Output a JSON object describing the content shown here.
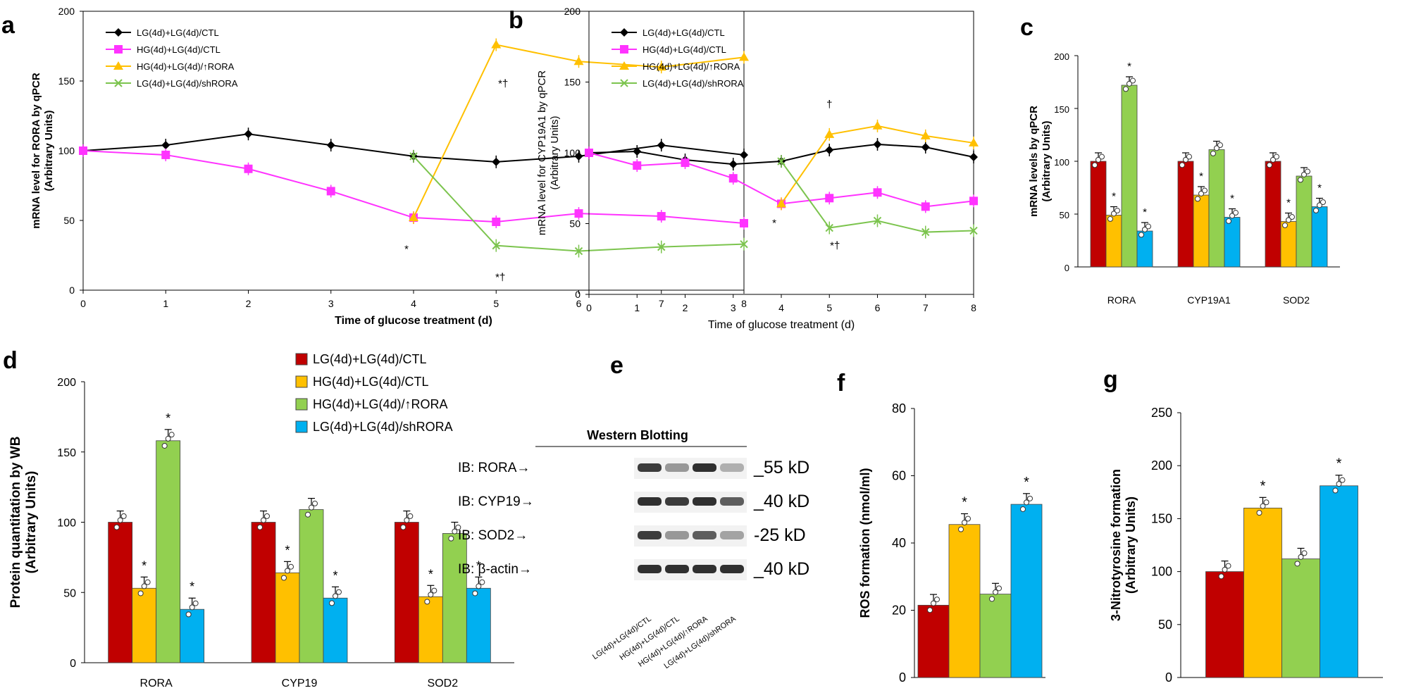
{
  "colors": {
    "black": "#000000",
    "magenta": "#FF33FF",
    "yellow": "#FFC000",
    "green": "#7CC44E",
    "red": "#C00000",
    "orange": "#FFC000",
    "lightgreen": "#92D050",
    "blue": "#00B0F0"
  },
  "chart_data": [
    {
      "panel": "a",
      "type": "line",
      "title": "",
      "xlabel": "Time of glucose treatment (d)",
      "ylabel": "mRNA level for RORA by qPCR",
      "ylabel2": "(Arbitrary Units)",
      "x": [
        0,
        1,
        2,
        3,
        4,
        5,
        6,
        7,
        8
      ],
      "xlim": [
        0,
        8
      ],
      "ylim": [
        0,
        200
      ],
      "yticks": [
        0,
        50,
        100,
        150,
        200
      ],
      "legend_position": "top-left",
      "series": [
        {
          "name": "LG(4d)+LG(4d)/CTL",
          "x": [
            0,
            1,
            2,
            3,
            4,
            5,
            6,
            7,
            8
          ],
          "values": [
            100,
            104,
            112,
            104,
            96,
            92,
            96,
            104,
            97
          ]
        },
        {
          "name": "HG(4d)+LG(4d)/CTL",
          "x": [
            0,
            1,
            2,
            3,
            4,
            5,
            6,
            7,
            8
          ],
          "values": [
            100,
            97,
            87,
            71,
            52,
            49,
            55,
            53,
            48
          ]
        },
        {
          "name": "HG(4d)+LG(4d)/↑RORA",
          "x": [
            4,
            5,
            6,
            7,
            8
          ],
          "values": [
            52,
            176,
            164,
            160,
            167
          ]
        },
        {
          "name": "LG(4d)+LG(4d)/shRORA",
          "x": [
            4,
            5,
            6,
            7,
            8
          ],
          "values": [
            96,
            32,
            28,
            31,
            33
          ]
        }
      ],
      "annotations": [
        "*†",
        "*",
        "*†"
      ]
    },
    {
      "panel": "b",
      "type": "line",
      "title": "",
      "xlabel": "Time of glucose treatment (d)",
      "ylabel": "mRNA level for CYP19A1 by qPCR",
      "ylabel2": "(Arbitrary Units)",
      "x": [
        0,
        1,
        2,
        3,
        4,
        5,
        6,
        7,
        8
      ],
      "xlim": [
        0,
        8
      ],
      "ylim": [
        0,
        200
      ],
      "yticks": [
        0,
        50,
        100,
        150,
        200
      ],
      "legend_position": "top-left",
      "series": [
        {
          "name": "LG(4d)+LG(4d)/CTL",
          "x": [
            0,
            1,
            2,
            3,
            4,
            5,
            6,
            7,
            8
          ],
          "values": [
            100,
            101,
            95,
            92,
            94,
            102,
            106,
            104,
            97
          ]
        },
        {
          "name": "HG(4d)+LG(4d)/CTL",
          "x": [
            0,
            1,
            2,
            3,
            4,
            5,
            6,
            7,
            8
          ],
          "values": [
            100,
            91,
            93,
            82,
            64,
            68,
            72,
            62,
            66
          ]
        },
        {
          "name": "HG(4d)+LG(4d)/↑RORA",
          "x": [
            4,
            5,
            6,
            7,
            8
          ],
          "values": [
            64,
            113,
            119,
            112,
            107
          ]
        },
        {
          "name": "LG(4d)+LG(4d)/shRORA",
          "x": [
            4,
            5,
            6,
            7,
            8
          ],
          "values": [
            94,
            47,
            52,
            44,
            45
          ]
        }
      ],
      "annotations": [
        "†",
        "*",
        "*†"
      ]
    },
    {
      "panel": "c",
      "type": "bar",
      "ylabel": "mRNA levels by qPCR",
      "ylabel2": "(Arbitrary Units)",
      "categories": [
        "RORA",
        "CYP19A1",
        "SOD2"
      ],
      "ylim": [
        0,
        200
      ],
      "yticks": [
        0,
        50,
        100,
        150,
        200
      ],
      "series": [
        {
          "name": "LG(4d)+LG(4d)/CTL",
          "values": [
            100,
            100,
            100
          ]
        },
        {
          "name": "HG(4d)+LG(4d)/CTL",
          "values": [
            49,
            68,
            43
          ]
        },
        {
          "name": "HG(4d)+LG(4d)/↑RORA",
          "values": [
            172,
            111,
            86
          ]
        },
        {
          "name": "LG(4d)+LG(4d)/shRORA",
          "values": [
            34,
            47,
            57
          ]
        }
      ],
      "significance_marker": "*"
    },
    {
      "panel": "d",
      "type": "bar",
      "ylabel": "Protein quantitation by WB",
      "ylabel2": "(Arbitrary Units)",
      "categories": [
        "RORA",
        "CYP19",
        "SOD2"
      ],
      "ylim": [
        0,
        200
      ],
      "yticks": [
        0,
        50,
        100,
        150,
        200
      ],
      "legend_position": "top-right",
      "series": [
        {
          "name": "LG(4d)+LG(4d)/CTL",
          "values": [
            100,
            100,
            100
          ]
        },
        {
          "name": "HG(4d)+LG(4d)/CTL",
          "values": [
            53,
            64,
            47
          ]
        },
        {
          "name": "HG(4d)+LG(4d)/↑RORA",
          "values": [
            158,
            109,
            92
          ]
        },
        {
          "name": "LG(4d)+LG(4d)/shRORA",
          "values": [
            38,
            46,
            53
          ]
        }
      ],
      "significance_marker": "*"
    },
    {
      "panel": "f",
      "type": "bar",
      "ylabel": "ROS formation (nmol/ml)",
      "ylim": [
        0,
        80
      ],
      "yticks": [
        0,
        20,
        40,
        60,
        80
      ],
      "series": [
        {
          "name": "LG(4d)+LG(4d)/CTL",
          "values": [
            21.5
          ]
        },
        {
          "name": "HG(4d)+LG(4d)/CTL",
          "values": [
            45.5
          ]
        },
        {
          "name": "HG(4d)+LG(4d)/↑RORA",
          "values": [
            24.8
          ]
        },
        {
          "name": "LG(4d)+LG(4d)/shRORA",
          "values": [
            51.5
          ]
        }
      ],
      "significance_marker": "*"
    },
    {
      "panel": "g",
      "type": "bar",
      "ylabel": "3-Nitrotyrosine formation",
      "ylabel2": "(Arbitrary Units)",
      "ylim": [
        0,
        250
      ],
      "yticks": [
        0,
        50,
        100,
        150,
        200,
        250
      ],
      "series": [
        {
          "name": "LG(4d)+LG(4d)/CTL",
          "values": [
            100
          ]
        },
        {
          "name": "HG(4d)+LG(4d)/CTL",
          "values": [
            160
          ]
        },
        {
          "name": "HG(4d)+LG(4d)/↑RORA",
          "values": [
            112
          ]
        },
        {
          "name": "LG(4d)+LG(4d)/shRORA",
          "values": [
            181
          ]
        }
      ],
      "significance_marker": "*"
    }
  ],
  "western_blot": {
    "panel": "e",
    "title": "Western Blotting",
    "rows": [
      {
        "label": "IB: RORA→",
        "kd": "_55 kD"
      },
      {
        "label": "IB: CYP19→",
        "kd": "_40 kD"
      },
      {
        "label": "IB: SOD2→",
        "kd": "-25 kD"
      },
      {
        "label": "IB: β-actin→",
        "kd": "_40 kD"
      }
    ],
    "lanes": [
      "LG(4d)+LG(4d)/CTL",
      "HG(4d)+LG(4d)/CTL",
      "HG(4d)+LG(4d)/↑RORA",
      "LG(4d)+LG(4d)/shRORA"
    ],
    "band_intensity": [
      [
        0.85,
        0.45,
        0.9,
        0.35
      ],
      [
        0.9,
        0.85,
        0.9,
        0.7
      ],
      [
        0.85,
        0.45,
        0.7,
        0.4
      ],
      [
        0.9,
        0.9,
        0.9,
        0.9
      ]
    ]
  }
}
